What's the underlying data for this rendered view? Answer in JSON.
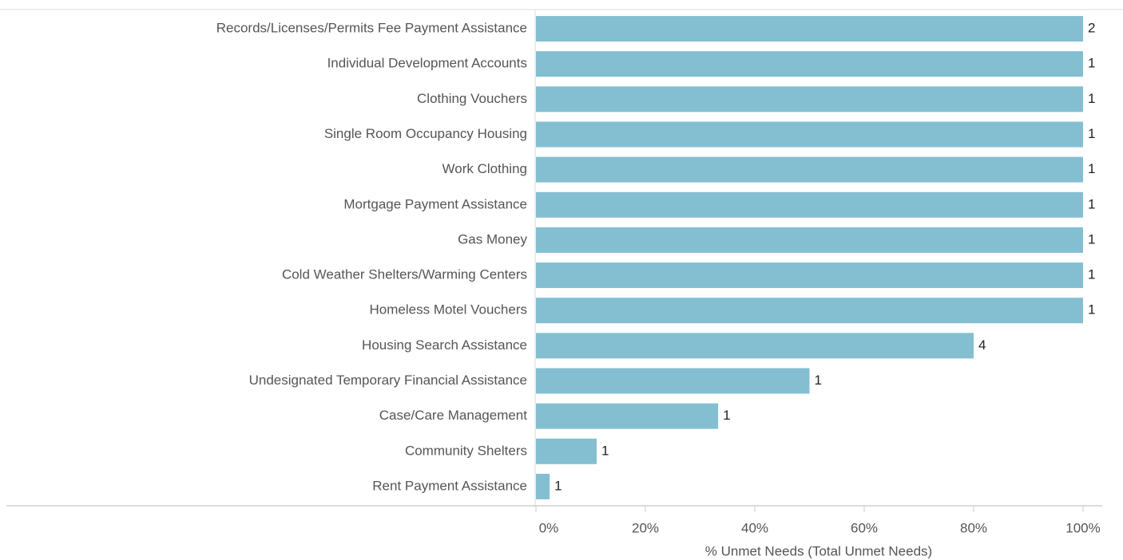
{
  "chart_data": {
    "type": "bar",
    "orientation": "horizontal",
    "categories": [
      "Records/Licenses/Permits Fee Payment Assistance",
      "Individual Development Accounts",
      "Clothing Vouchers",
      "Single Room Occupancy Housing",
      "Work Clothing",
      "Mortgage Payment Assistance",
      "Gas Money",
      "Cold Weather Shelters/Warming Centers",
      "Homeless Motel Vouchers",
      "Housing Search Assistance",
      "Undesignated Temporary Financial Assistance",
      "Case/Care Management",
      "Community Shelters",
      "Rent Payment Assistance"
    ],
    "values": [
      100,
      100,
      100,
      100,
      100,
      100,
      100,
      100,
      100,
      80,
      50,
      33.3,
      11.1,
      2.5
    ],
    "total_unmet_needs": [
      2,
      1,
      1,
      1,
      1,
      1,
      1,
      1,
      1,
      4,
      1,
      1,
      1,
      1
    ],
    "color": "#83bfd1",
    "xlabel": "% Unmet Needs (Total Unmet Needs)",
    "xlim": [
      0,
      100
    ],
    "xticks": [
      {
        "value": 0,
        "label": "0%"
      },
      {
        "value": 20,
        "label": "20%"
      },
      {
        "value": 40,
        "label": "40%"
      },
      {
        "value": 60,
        "label": "60%"
      },
      {
        "value": 80,
        "label": "80%"
      },
      {
        "value": 100,
        "label": "100%"
      }
    ]
  }
}
